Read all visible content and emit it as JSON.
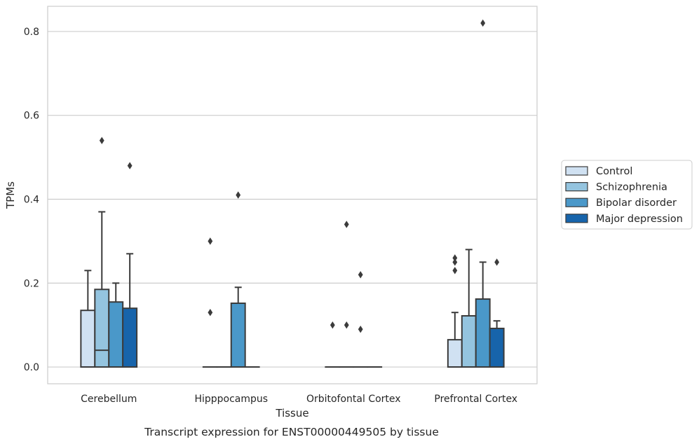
{
  "chart_data": {
    "type": "box",
    "title": "",
    "caption": "Transcript expression for ENST00000449505 by tissue",
    "xlabel": "Tissue",
    "ylabel": "TPMs",
    "ylim": [
      -0.04,
      0.86
    ],
    "yticks": [
      "0.0",
      "0.2",
      "0.4",
      "0.6",
      "0.8"
    ],
    "ytick_values": [
      0.0,
      0.2,
      0.4,
      0.6,
      0.8
    ],
    "grid": "horizontal",
    "legend_position": "right",
    "categories": [
      "Cerebellum",
      "Hipppocampus",
      "Orbitofontal Cortex",
      "Prefrontal Cortex"
    ],
    "series": [
      {
        "name": "Control",
        "color": "#d0e1f2",
        "boxes": [
          {
            "q1": 0.0,
            "median": 0.0,
            "q3": 0.135,
            "whisker_low": 0.0,
            "whisker_high": 0.23,
            "outliers": []
          },
          {
            "q1": 0.0,
            "median": 0.0,
            "q3": 0.0,
            "whisker_low": 0.0,
            "whisker_high": 0.0,
            "outliers": [
              0.3,
              0.13
            ]
          },
          {
            "q1": 0.0,
            "median": 0.0,
            "q3": 0.0,
            "whisker_low": 0.0,
            "whisker_high": 0.0,
            "outliers": [
              0.1
            ]
          },
          {
            "q1": 0.0,
            "median": 0.0,
            "q3": 0.065,
            "whisker_low": 0.0,
            "whisker_high": 0.13,
            "outliers": [
              0.26,
              0.25,
              0.23
            ]
          }
        ]
      },
      {
        "name": "Schizophrenia",
        "color": "#94c4df",
        "boxes": [
          {
            "q1": 0.0,
            "median": 0.04,
            "q3": 0.185,
            "whisker_low": 0.0,
            "whisker_high": 0.37,
            "outliers": [
              0.54
            ]
          },
          {
            "q1": 0.0,
            "median": 0.0,
            "q3": 0.0,
            "whisker_low": 0.0,
            "whisker_high": 0.0,
            "outliers": []
          },
          {
            "q1": 0.0,
            "median": 0.0,
            "q3": 0.0,
            "whisker_low": 0.0,
            "whisker_high": 0.0,
            "outliers": [
              0.34,
              0.1
            ]
          },
          {
            "q1": 0.0,
            "median": 0.0,
            "q3": 0.122,
            "whisker_low": 0.0,
            "whisker_high": 0.28,
            "outliers": []
          }
        ]
      },
      {
        "name": "Bipolar disorder",
        "color": "#4a98c9",
        "boxes": [
          {
            "q1": 0.0,
            "median": 0.0,
            "q3": 0.155,
            "whisker_low": 0.0,
            "whisker_high": 0.2,
            "outliers": []
          },
          {
            "q1": 0.0,
            "median": 0.0,
            "q3": 0.152,
            "whisker_low": 0.0,
            "whisker_high": 0.19,
            "outliers": [
              0.41
            ]
          },
          {
            "q1": 0.0,
            "median": 0.0,
            "q3": 0.0,
            "whisker_low": 0.0,
            "whisker_high": 0.0,
            "outliers": [
              0.22,
              0.09
            ]
          },
          {
            "q1": 0.0,
            "median": 0.0,
            "q3": 0.162,
            "whisker_low": 0.0,
            "whisker_high": 0.25,
            "outliers": [
              0.82
            ]
          }
        ]
      },
      {
        "name": "Major depression",
        "color": "#1764ab",
        "boxes": [
          {
            "q1": 0.0,
            "median": 0.0,
            "q3": 0.14,
            "whisker_low": 0.0,
            "whisker_high": 0.27,
            "outliers": [
              0.48
            ]
          },
          {
            "q1": 0.0,
            "median": 0.0,
            "q3": 0.0,
            "whisker_low": 0.0,
            "whisker_high": 0.0,
            "outliers": []
          },
          {
            "q1": 0.0,
            "median": 0.0,
            "q3": 0.0,
            "whisker_low": 0.0,
            "whisker_high": 0.0,
            "outliers": []
          },
          {
            "q1": 0.0,
            "median": 0.0,
            "q3": 0.092,
            "whisker_low": 0.0,
            "whisker_high": 0.11,
            "outliers": [
              0.25
            ]
          }
        ]
      }
    ]
  }
}
